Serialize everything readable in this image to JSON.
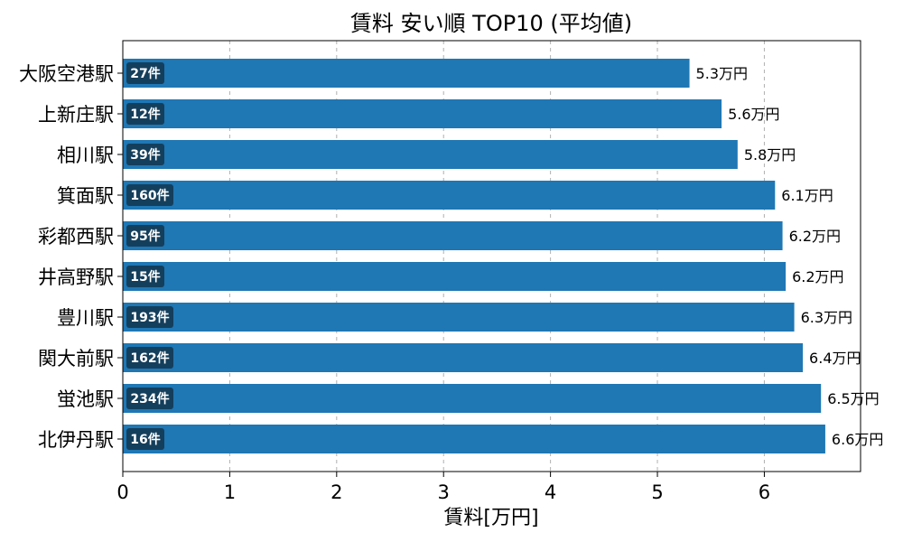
{
  "chart_data": {
    "type": "bar",
    "orientation": "horizontal",
    "title": "賃料 安い順 TOP10 (平均値)",
    "xlabel": "賃料[万円]",
    "ylabel": "",
    "xlim": [
      0,
      6.9
    ],
    "xticks": [
      0,
      1,
      2,
      3,
      4,
      5,
      6
    ],
    "grid": "x-dashed",
    "bar_color": "#1f77b4",
    "count_badge_color": "#143f5c",
    "categories": [
      "大阪空港駅",
      "上新庄駅",
      "相川駅",
      "箕面駅",
      "彩都西駅",
      "井高野駅",
      "豊川駅",
      "関大前駅",
      "蛍池駅",
      "北伊丹駅"
    ],
    "values": [
      5.3,
      5.6,
      5.75,
      6.1,
      6.17,
      6.2,
      6.28,
      6.36,
      6.53,
      6.57
    ],
    "value_labels": [
      "5.3万円",
      "5.6万円",
      "5.8万円",
      "6.1万円",
      "6.2万円",
      "6.2万円",
      "6.3万円",
      "6.4万円",
      "6.5万円",
      "6.6万円"
    ],
    "count_labels": [
      "27件",
      "12件",
      "39件",
      "160件",
      "95件",
      "15件",
      "193件",
      "162件",
      "234件",
      "16件"
    ]
  }
}
